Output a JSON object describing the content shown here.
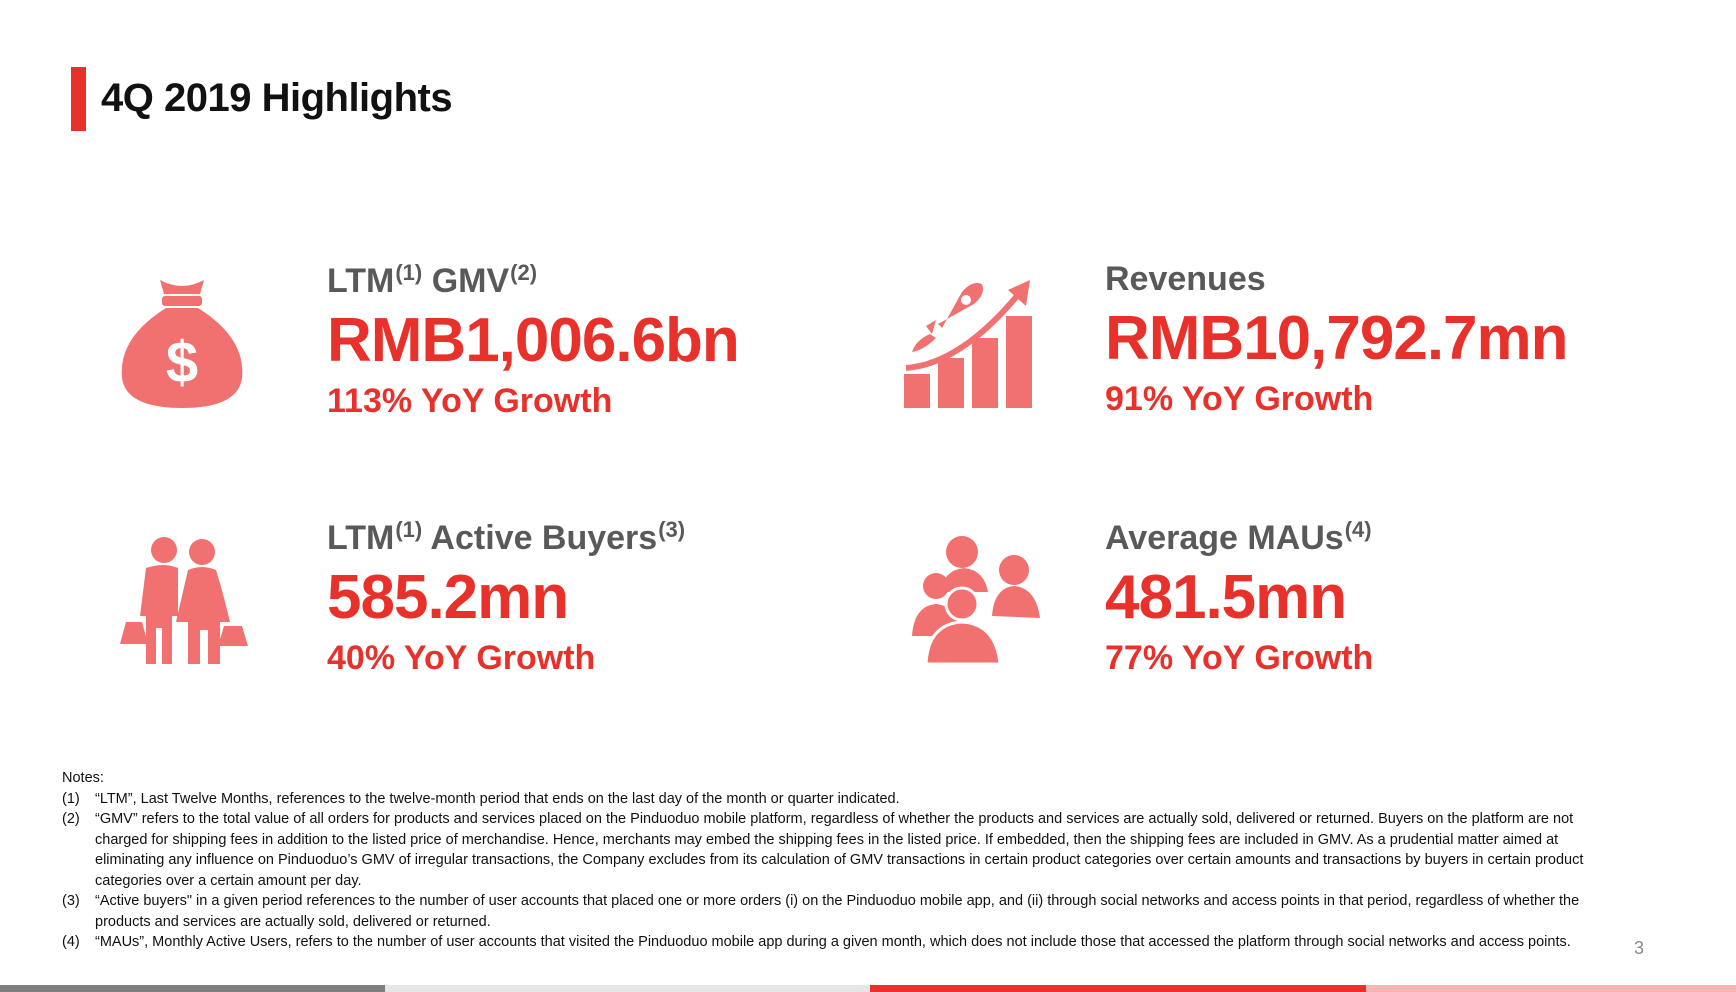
{
  "header": {
    "title": "4Q 2019 Highlights"
  },
  "colors": {
    "accent": "#e8312a",
    "icon": "#f07170",
    "label": "#595959",
    "bar_gray": "#7f7f7f",
    "bar_light": "#e6e6e6",
    "bar_red": "#e8312a",
    "bar_pink": "#f3b7b3"
  },
  "metrics": [
    {
      "label": "LTM",
      "sup1": "(1)",
      "label2": "GMV",
      "sup2": "(2)",
      "value": "RMB1,006.6bn",
      "growth": "113% YoY Growth",
      "icon": "money-bag-icon"
    },
    {
      "label": "Revenues",
      "value": "RMB10,792.7mn",
      "growth": "91% YoY Growth",
      "icon": "rocket-growth-chart-icon"
    },
    {
      "label": "LTM",
      "sup1": "(1)",
      "label2": "Active Buyers",
      "sup2": "(3)",
      "value": "585.2mn",
      "growth": "40% YoY Growth",
      "icon": "shoppers-icon"
    },
    {
      "label": "Average MAUs",
      "sup1": "(4)",
      "value": "481.5mn",
      "growth": "77% YoY Growth",
      "icon": "group-users-icon"
    }
  ],
  "notes": {
    "heading": "Notes:",
    "items": [
      {
        "num": "(1)",
        "text": "“LTM”, Last Twelve Months, references to the twelve-month period that ends on the last day of the month or quarter indicated."
      },
      {
        "num": "(2)",
        "text": "“GMV” refers to the total value of all orders for products and services placed on the Pinduoduo mobile platform, regardless of whether the products and services are actually sold, delivered or returned. Buyers on the platform are not charged for shipping fees in addition to the listed price of merchandise. Hence, merchants may embed the shipping fees in the listed price. If embedded, then the shipping fees are included in GMV. As a prudential matter aimed at eliminating any influence on Pinduoduo’s GMV of irregular transactions, the Company excludes from its calculation of GMV transactions in certain product categories over certain amounts and transactions by buyers in certain product categories over a certain amount per day."
      },
      {
        "num": "(3)",
        "text": "“Active buyers\" in a given period references to the number of user accounts that placed one or more orders (i) on the Pinduoduo mobile app, and (ii) through social networks and access points in that period, regardless of whether the products and services are actually sold, delivered or returned."
      },
      {
        "num": "(4)",
        "text": "“MAUs”, Monthly Active Users, refers to the number of user accounts that visited the Pinduoduo mobile app during a given month, which does not include those that accessed the platform through social networks and access points."
      }
    ]
  },
  "page_number": "3"
}
